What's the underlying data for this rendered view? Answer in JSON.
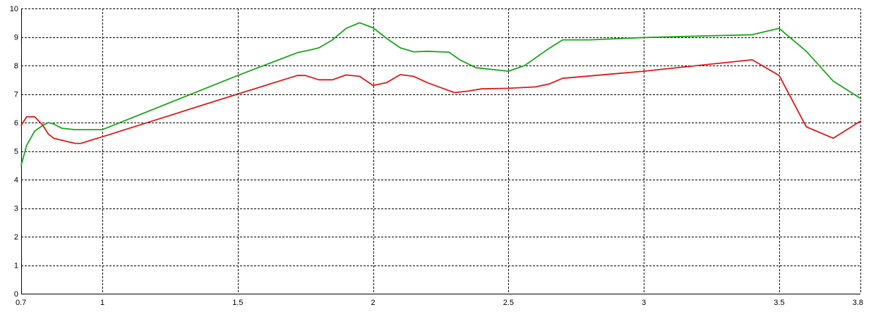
{
  "chart_data": {
    "type": "line",
    "title": "",
    "xlabel": "",
    "ylabel": "",
    "xlim": [
      0.7,
      3.8
    ],
    "ylim": [
      0,
      10
    ],
    "grid": true,
    "x_ticks": [
      {
        "value": 0.7,
        "label": "0.7"
      },
      {
        "value": 1,
        "label": "1"
      },
      {
        "value": 1.5,
        "label": "1.5"
      },
      {
        "value": 2,
        "label": "2"
      },
      {
        "value": 2.5,
        "label": "2.5"
      },
      {
        "value": 3,
        "label": "3"
      },
      {
        "value": 3.5,
        "label": "3.5"
      },
      {
        "value": 3.8,
        "label": "3.8"
      }
    ],
    "y_ticks": [
      {
        "value": 0,
        "label": "0"
      },
      {
        "value": 1,
        "label": "1"
      },
      {
        "value": 2,
        "label": "2"
      },
      {
        "value": 3,
        "label": "3"
      },
      {
        "value": 4,
        "label": "4"
      },
      {
        "value": 5,
        "label": "5"
      },
      {
        "value": 6,
        "label": "6"
      },
      {
        "value": 7,
        "label": "7"
      },
      {
        "value": 8,
        "label": "8"
      },
      {
        "value": 9,
        "label": "9"
      },
      {
        "value": 10,
        "label": "10"
      }
    ],
    "series": [
      {
        "color": "#19a519",
        "points": [
          [
            0.7,
            4.5
          ],
          [
            0.72,
            5.2
          ],
          [
            0.75,
            5.7
          ],
          [
            0.78,
            5.9
          ],
          [
            0.8,
            6.0
          ],
          [
            0.82,
            5.95
          ],
          [
            0.85,
            5.8
          ],
          [
            0.9,
            5.75
          ],
          [
            1.0,
            5.75
          ],
          [
            1.5,
            7.65
          ],
          [
            1.72,
            8.45
          ],
          [
            1.77,
            8.55
          ],
          [
            1.8,
            8.62
          ],
          [
            1.85,
            8.9
          ],
          [
            1.9,
            9.3
          ],
          [
            1.95,
            9.5
          ],
          [
            2.0,
            9.32
          ],
          [
            2.05,
            8.95
          ],
          [
            2.1,
            8.62
          ],
          [
            2.15,
            8.48
          ],
          [
            2.2,
            8.5
          ],
          [
            2.25,
            8.48
          ],
          [
            2.28,
            8.47
          ],
          [
            2.32,
            8.2
          ],
          [
            2.38,
            7.92
          ],
          [
            2.5,
            7.8
          ],
          [
            2.56,
            8.0
          ],
          [
            2.65,
            8.6
          ],
          [
            2.7,
            8.9
          ],
          [
            2.8,
            8.9
          ],
          [
            3.0,
            8.98
          ],
          [
            3.4,
            9.08
          ],
          [
            3.5,
            9.3
          ],
          [
            3.6,
            8.5
          ],
          [
            3.7,
            7.45
          ],
          [
            3.8,
            6.85
          ]
        ]
      },
      {
        "color": "#e01616",
        "points": [
          [
            0.7,
            5.9
          ],
          [
            0.72,
            6.2
          ],
          [
            0.75,
            6.2
          ],
          [
            0.78,
            5.9
          ],
          [
            0.8,
            5.6
          ],
          [
            0.82,
            5.45
          ],
          [
            0.85,
            5.38
          ],
          [
            0.9,
            5.27
          ],
          [
            0.92,
            5.27
          ],
          [
            1.0,
            5.5
          ],
          [
            1.5,
            7.0
          ],
          [
            1.72,
            7.65
          ],
          [
            1.75,
            7.65
          ],
          [
            1.8,
            7.5
          ],
          [
            1.85,
            7.5
          ],
          [
            1.9,
            7.67
          ],
          [
            1.95,
            7.62
          ],
          [
            2.0,
            7.3
          ],
          [
            2.05,
            7.4
          ],
          [
            2.1,
            7.68
          ],
          [
            2.15,
            7.62
          ],
          [
            2.2,
            7.4
          ],
          [
            2.3,
            7.05
          ],
          [
            2.35,
            7.1
          ],
          [
            2.4,
            7.18
          ],
          [
            2.5,
            7.2
          ],
          [
            2.6,
            7.25
          ],
          [
            2.65,
            7.35
          ],
          [
            2.7,
            7.55
          ],
          [
            3.0,
            7.8
          ],
          [
            3.4,
            8.2
          ],
          [
            3.5,
            7.65
          ],
          [
            3.6,
            5.85
          ],
          [
            3.7,
            5.45
          ],
          [
            3.8,
            6.05
          ]
        ]
      }
    ]
  }
}
